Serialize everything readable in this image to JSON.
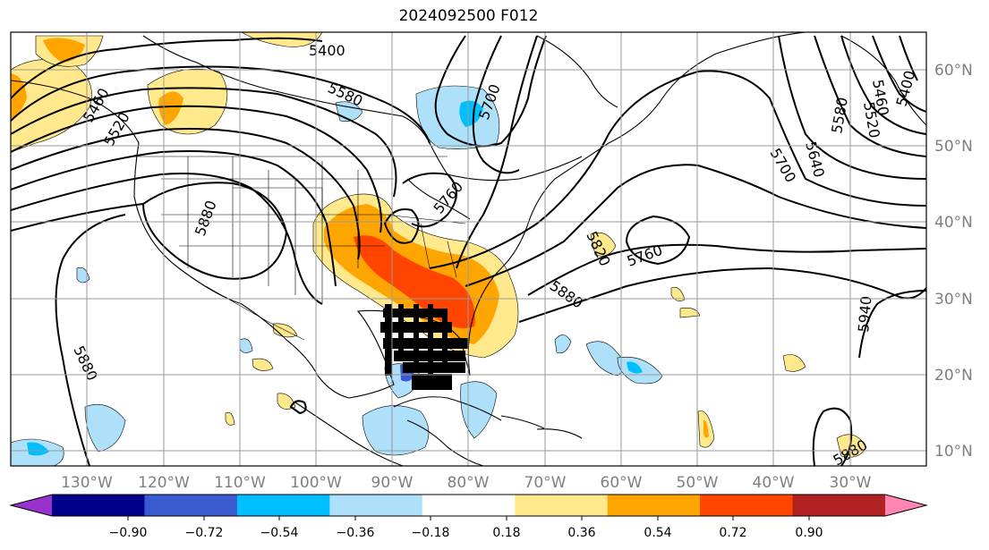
{
  "title": "2024092500 F012",
  "map": {
    "lat_labels": [
      "60°N",
      "50°N",
      "40°N",
      "30°N",
      "20°N",
      "10°N"
    ],
    "lon_labels": [
      "130°W",
      "120°W",
      "110°W",
      "100°W",
      "90°W",
      "80°W",
      "70°W",
      "60°W",
      "50°W",
      "40°W",
      "30°W"
    ],
    "contour_labels": [
      "5400",
      "5580",
      "5700",
      "5460",
      "5520",
      "5400",
      "5460",
      "5520",
      "5580",
      "5640",
      "5700",
      "5880",
      "5760",
      "5820",
      "5760",
      "5880",
      "5940",
      "5880",
      "5880",
      "5880"
    ],
    "colorbar": {
      "tick_labels": [
        "−0.90",
        "−0.72",
        "−0.54",
        "−0.36",
        "−0.18",
        "0.18",
        "0.36",
        "0.54",
        "0.72",
        "0.90"
      ],
      "colors": [
        "#9932cc",
        "#00008b",
        "#3a5bd0",
        "#00bfff",
        "#aee0fa",
        "#ffffff",
        "#ffe98c",
        "#ffa500",
        "#ff4500",
        "#b22222",
        "#ff85b3"
      ]
    }
  }
}
